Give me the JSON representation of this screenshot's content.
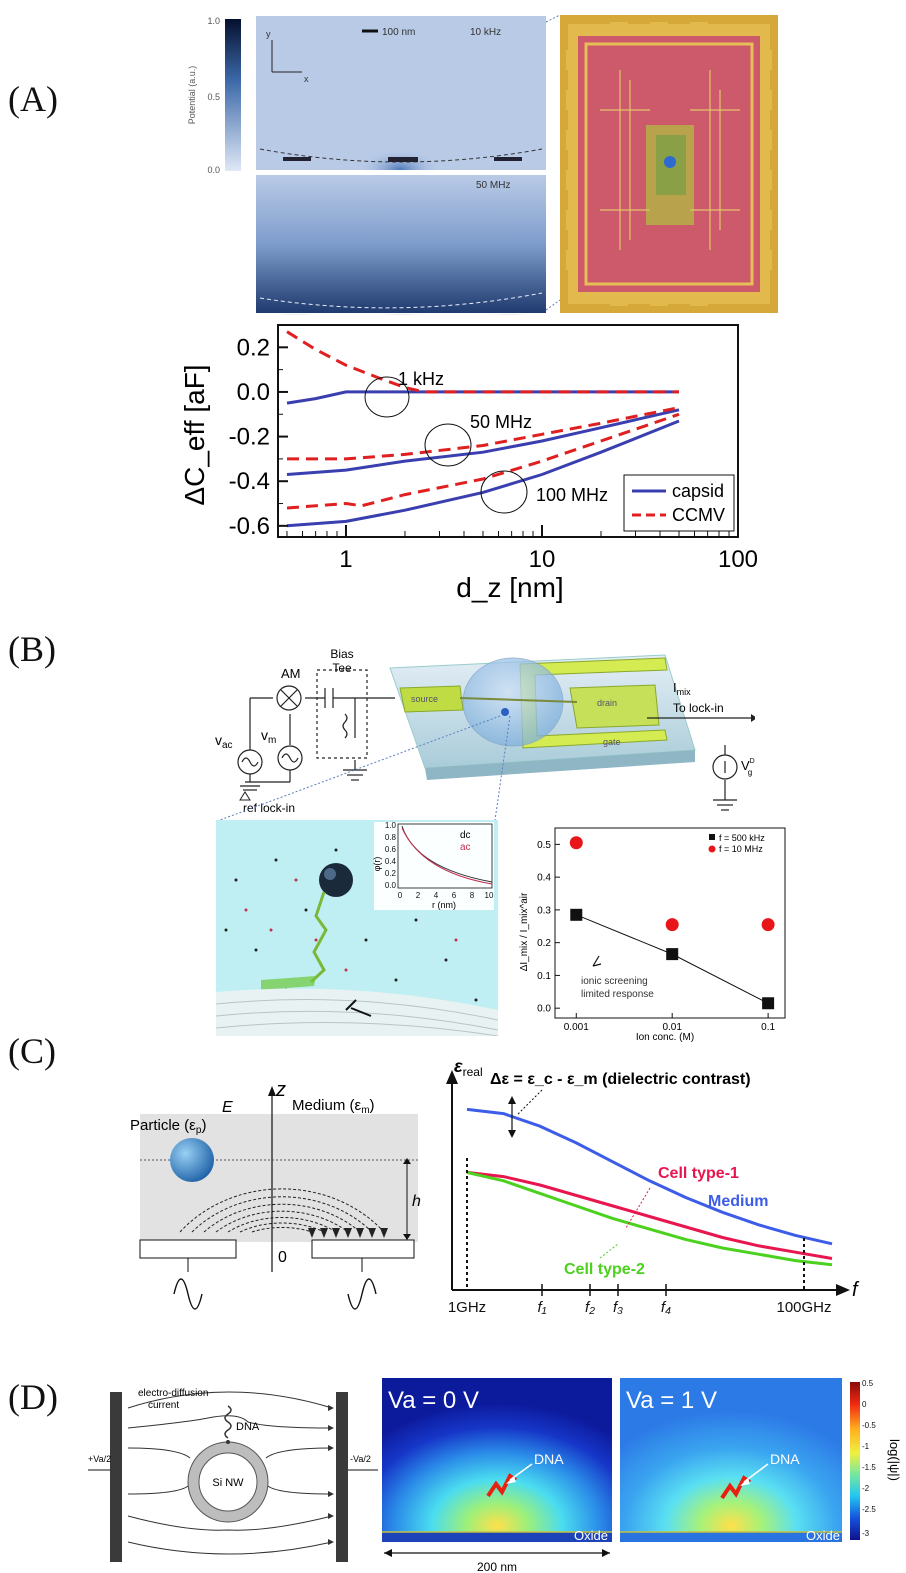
{
  "panels": {
    "A": {
      "label": "(A)",
      "colorbar": {
        "title": "Potential (a.u.)",
        "ticks": [
          "1.0",
          "0.5",
          "0.0"
        ]
      },
      "map_top": {
        "scale": "100 nm",
        "freq": "10 kHz",
        "axis_y": "y",
        "axis_x": "x"
      },
      "map_bottom": {
        "freq": "50 MHz"
      },
      "chart_data": {
        "type": "line",
        "xlabel": "d_z [nm]",
        "ylabel": "ΔC_eff [aF]",
        "xscale": "log",
        "xlim": [
          0.45,
          100
        ],
        "ylim": [
          -0.65,
          0.3
        ],
        "xticks": [
          "1",
          "10",
          "100"
        ],
        "yticks": [
          "0.2",
          "0.0",
          "-0.2",
          "-0.4",
          "-0.6"
        ],
        "legend": {
          "placement": "right",
          "entries": [
            "capsid",
            "CCMV"
          ]
        },
        "annotations": [
          "1 kHz",
          "50 MHz",
          "100 MHz"
        ],
        "series": [
          {
            "name": "capsid",
            "group": "1 kHz",
            "color": "#3a3fb0",
            "x": [
              0.5,
              0.7,
              1,
              2,
              5,
              10,
              20,
              50
            ],
            "y": [
              -0.05,
              -0.03,
              0.0,
              0.0,
              0.0,
              0.0,
              0.0,
              0.0
            ]
          },
          {
            "name": "CCMV",
            "group": "1 kHz",
            "color": "#e02020",
            "x": [
              0.5,
              0.7,
              1,
              1.5,
              2,
              2.5,
              3,
              5,
              10,
              20,
              50
            ],
            "y": [
              0.27,
              0.19,
              0.12,
              0.06,
              0.02,
              0.0,
              0.0,
              0.0,
              0.0,
              0.0,
              0.0
            ]
          },
          {
            "name": "capsid",
            "group": "50 MHz",
            "color": "#3a3fb0",
            "x": [
              0.5,
              1,
              2,
              5,
              10,
              20,
              50
            ],
            "y": [
              -0.37,
              -0.35,
              -0.31,
              -0.27,
              -0.22,
              -0.16,
              -0.08
            ]
          },
          {
            "name": "CCMV",
            "group": "50 MHz",
            "color": "#e02020",
            "x": [
              0.5,
              1,
              2,
              5,
              10,
              20,
              50
            ],
            "y": [
              -0.3,
              -0.3,
              -0.28,
              -0.24,
              -0.19,
              -0.14,
              -0.07
            ]
          },
          {
            "name": "capsid",
            "group": "100 MHz",
            "color": "#3a3fb0",
            "x": [
              0.5,
              1,
              2,
              5,
              10,
              20,
              50
            ],
            "y": [
              -0.6,
              -0.58,
              -0.53,
              -0.45,
              -0.37,
              -0.27,
              -0.13
            ]
          },
          {
            "name": "CCMV",
            "group": "100 MHz",
            "color": "#e02020",
            "x": [
              0.5,
              1,
              1.2,
              2,
              5,
              10,
              20,
              50
            ],
            "y": [
              -0.52,
              -0.5,
              -0.51,
              -0.46,
              -0.39,
              -0.31,
              -0.22,
              -0.1
            ]
          }
        ]
      }
    },
    "B": {
      "label": "(B)",
      "circuit": {
        "bias_tee": "Bias\nTee",
        "am": "AM",
        "vac": "v",
        "vac_sub": "ac",
        "vm": "v",
        "vm_sub": "m",
        "ref": "ref lock-in",
        "imix": "I",
        "imix_sub": "mix",
        "to_lockin": "To lock-in",
        "vg": "V",
        "vg_sup": "DC",
        "vg_sub": "g",
        "source": "source",
        "drain": "drain",
        "gate": "gate"
      },
      "inset": {
        "ylabel": "φ(r)",
        "xlabel": "r (nm)",
        "legend": [
          "dc",
          "ac"
        ],
        "yticks": [
          "1.0",
          "0.8",
          "0.6",
          "0.4",
          "0.2",
          "0.0"
        ],
        "xticks": [
          "0",
          "2",
          "4",
          "6",
          "8",
          "10"
        ]
      },
      "chart_data": {
        "type": "scatter",
        "xlabel": "Ion conc. (M)",
        "ylabel": "ΔI_mix / I_mix^air",
        "xscale": "log",
        "xlim": [
          0.0006,
          0.15
        ],
        "ylim": [
          -0.03,
          0.55
        ],
        "xticks": [
          "0.001",
          "0.01",
          "0.1"
        ],
        "yticks": [
          "0.5",
          "0.4",
          "0.3",
          "0.2",
          "0.1",
          "0.0"
        ],
        "legend": {
          "placement": "top-right",
          "entries": [
            "f = 500 kHz",
            "f = 10 MHz"
          ]
        },
        "annotation": "ionic screening\nlimited response",
        "series": [
          {
            "name": "f = 500 kHz",
            "color": "#111111",
            "marker": "square",
            "x": [
              0.001,
              0.01,
              0.1
            ],
            "y": [
              0.285,
              0.165,
              0.015
            ]
          },
          {
            "name": "f = 10 MHz",
            "color": "#e8161b",
            "marker": "circle",
            "x": [
              0.001,
              0.01,
              0.1
            ],
            "y": [
              0.505,
              0.255,
              0.255
            ]
          }
        ]
      }
    },
    "C": {
      "label": "(C)",
      "schematic": {
        "z": "z",
        "E": "E",
        "particle": "Particle (ε",
        "particle_sub": "p",
        "medium": "Medium (ε",
        "medium_sub": "m",
        "h": "h",
        "origin": "0"
      },
      "chart_data": {
        "type": "line",
        "ylabel": "ε_real",
        "xlabel": "f",
        "xticks": [
          "1GHz",
          "f₁",
          "f₂",
          "f₃",
          "f₄",
          "100GHz"
        ],
        "title_annotation": "Δε = ε_c - ε_m (dielectric contrast)",
        "series": [
          {
            "name": "Medium",
            "color": "#3d5ce8",
            "x": [
              0,
              0.1,
              0.2,
              0.3,
              0.4,
              0.5,
              0.6,
              0.7,
              0.8,
              0.9,
              1.0
            ],
            "y": [
              0.86,
              0.84,
              0.78,
              0.7,
              0.61,
              0.52,
              0.44,
              0.37,
              0.31,
              0.26,
              0.22
            ]
          },
          {
            "name": "Cell type-1",
            "color": "#e8164f",
            "x": [
              0,
              0.1,
              0.2,
              0.3,
              0.4,
              0.5,
              0.6,
              0.7,
              0.8,
              0.9,
              1.0
            ],
            "y": [
              0.56,
              0.54,
              0.5,
              0.45,
              0.4,
              0.35,
              0.3,
              0.25,
              0.21,
              0.18,
              0.15
            ]
          },
          {
            "name": "Cell type-2",
            "color": "#4cd11e",
            "x": [
              0,
              0.1,
              0.2,
              0.3,
              0.4,
              0.5,
              0.6,
              0.7,
              0.8,
              0.9,
              1.0
            ],
            "y": [
              0.56,
              0.52,
              0.46,
              0.4,
              0.34,
              0.29,
              0.24,
              0.2,
              0.17,
              0.14,
              0.12
            ]
          }
        ]
      }
    },
    "D": {
      "label": "(D)",
      "schematic": {
        "current": "electro-diffusion\ncurrent",
        "dna": "DNA",
        "nw": "Si NW",
        "left_v": "+Va/2",
        "right_v": "-Va/2"
      },
      "map_left": {
        "title": "Va = 0 V",
        "dna": "DNA",
        "oxide": "Oxide"
      },
      "map_right": {
        "title": "Va = 1 V",
        "dna": "DNA",
        "oxide": "Oxide"
      },
      "scalebar": "200 nm",
      "colorbar": {
        "label": "log(|ψ|)",
        "ticks": [
          "0.5",
          "0",
          "-0.5",
          "-1",
          "-1.5",
          "-2",
          "-2.5",
          "-3"
        ]
      }
    }
  }
}
